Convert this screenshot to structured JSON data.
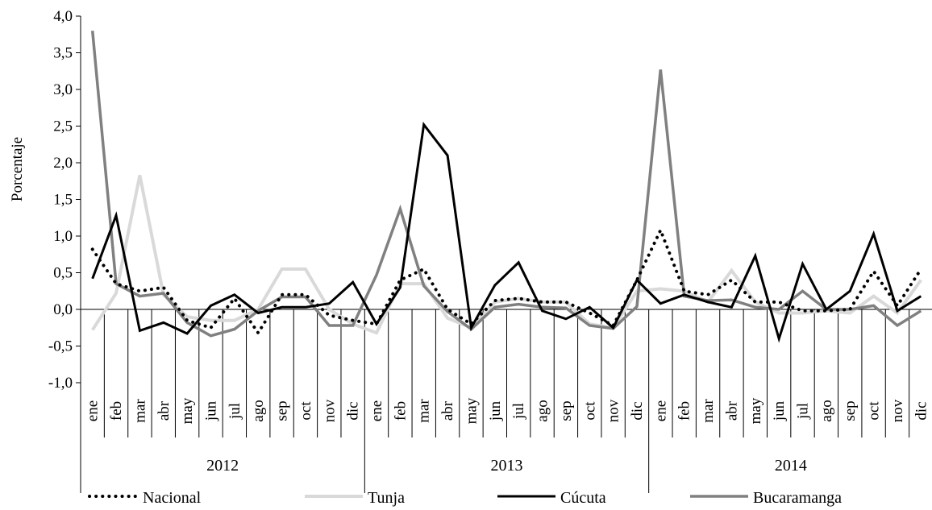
{
  "chart_data": {
    "type": "line",
    "ylabel": "Porcentaje",
    "ylim": [
      -1.0,
      4.0
    ],
    "ytick_step": 0.5,
    "ytick_labels": [
      "-1,0",
      "-0,5",
      "0,0",
      "0,5",
      "1,0",
      "1,5",
      "2,0",
      "2,5",
      "3,0",
      "3,5",
      "4,0"
    ],
    "months": [
      "ene",
      "feb",
      "mar",
      "abr",
      "may",
      "jun",
      "jul",
      "ago",
      "sep",
      "oct",
      "nov",
      "dic"
    ],
    "years": [
      "2012",
      "2013",
      "2014"
    ],
    "legend_position": "bottom",
    "series": [
      {
        "name": "Nacional",
        "style": "dotted",
        "color": "#000000",
        "values": [
          0.82,
          0.35,
          0.25,
          0.3,
          -0.15,
          -0.25,
          0.15,
          -0.32,
          0.2,
          0.2,
          -0.08,
          -0.15,
          -0.2,
          0.4,
          0.55,
          0.0,
          -0.2,
          0.12,
          0.15,
          0.1,
          0.1,
          -0.05,
          -0.22,
          0.4,
          1.08,
          0.25,
          0.2,
          0.4,
          0.1,
          0.1,
          -0.02,
          -0.02,
          0.0,
          0.52,
          0.05,
          0.55
        ]
      },
      {
        "name": "Tunja",
        "style": "solid",
        "color": "#d9d9d9",
        "values": [
          -0.28,
          0.22,
          1.83,
          0.2,
          -0.1,
          -0.15,
          -0.15,
          0.0,
          0.55,
          0.55,
          0.0,
          -0.2,
          -0.32,
          0.35,
          0.35,
          -0.12,
          -0.25,
          0.1,
          0.15,
          0.1,
          0.1,
          -0.2,
          -0.25,
          0.25,
          0.28,
          0.25,
          0.1,
          0.53,
          0.1,
          -0.05,
          -0.05,
          -0.02,
          -0.05,
          0.18,
          -0.05,
          0.4
        ]
      },
      {
        "name": "Cúcuta",
        "style": "solid",
        "color": "#000000",
        "values": [
          0.42,
          1.28,
          -0.29,
          -0.18,
          -0.33,
          0.05,
          0.2,
          -0.05,
          0.03,
          0.03,
          0.08,
          0.37,
          -0.2,
          0.3,
          2.52,
          2.1,
          -0.25,
          0.33,
          0.64,
          -0.02,
          -0.13,
          0.03,
          -0.25,
          0.4,
          0.08,
          0.2,
          0.1,
          0.03,
          0.73,
          -0.4,
          0.62,
          0.0,
          0.25,
          1.03,
          -0.02,
          0.18
        ]
      },
      {
        "name": "Bucaramanga",
        "style": "solid",
        "color": "#808080",
        "values": [
          3.8,
          0.35,
          0.18,
          0.22,
          -0.18,
          -0.36,
          -0.27,
          -0.02,
          0.17,
          0.17,
          -0.22,
          -0.22,
          0.47,
          1.37,
          0.32,
          -0.03,
          -0.27,
          0.03,
          0.07,
          0.03,
          0.02,
          -0.22,
          -0.26,
          0.04,
          3.27,
          0.18,
          0.12,
          0.13,
          0.03,
          0.0,
          0.25,
          0.0,
          0.0,
          0.05,
          -0.22,
          -0.02
        ]
      }
    ]
  }
}
